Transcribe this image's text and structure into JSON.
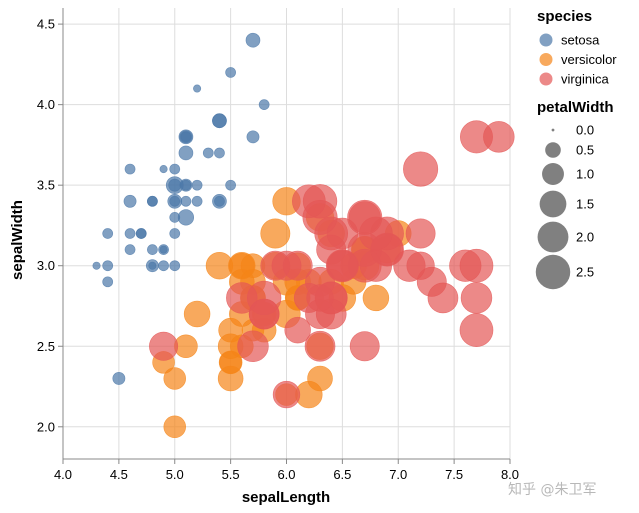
{
  "chart_data": {
    "type": "scatter",
    "xlabel": "sepalLength",
    "ylabel": "sepalWidth",
    "xlim": [
      4.0,
      8.0
    ],
    "ylim": [
      1.8,
      4.6
    ],
    "xticks": [
      "4.0",
      "4.5",
      "5.0",
      "5.5",
      "6.0",
      "6.5",
      "7.0",
      "7.5",
      "8.0"
    ],
    "yticks": [
      "2.0",
      "2.5",
      "3.0",
      "3.5",
      "4.0",
      "4.5"
    ],
    "xtick_values": [
      4.0,
      4.5,
      5.0,
      5.5,
      6.0,
      6.5,
      7.0,
      7.5,
      8.0
    ],
    "ytick_values": [
      2.0,
      2.5,
      3.0,
      3.5,
      4.0,
      4.5
    ],
    "grid": true,
    "legend_position": "right",
    "color_legend": {
      "title": "species",
      "entries": [
        {
          "label": "setosa",
          "color": "#4c78a8"
        },
        {
          "label": "versicolor",
          "color": "#f58518"
        },
        {
          "label": "virginica",
          "color": "#e45756"
        }
      ]
    },
    "size_legend": {
      "title": "petalWidth",
      "entries": [
        {
          "label": "0.0",
          "value": 0.0
        },
        {
          "label": "0.5",
          "value": 0.5
        },
        {
          "label": "1.0",
          "value": 1.0
        },
        {
          "label": "1.5",
          "value": 1.5
        },
        {
          "label": "2.0",
          "value": 2.0
        },
        {
          "label": "2.5",
          "value": 2.5
        }
      ]
    },
    "series": [
      {
        "name": "setosa",
        "color": "#4c78a8",
        "points": [
          [
            5.1,
            3.5,
            0.2
          ],
          [
            4.9,
            3.0,
            0.2
          ],
          [
            4.7,
            3.2,
            0.2
          ],
          [
            4.6,
            3.1,
            0.2
          ],
          [
            5.0,
            3.6,
            0.2
          ],
          [
            5.4,
            3.9,
            0.4
          ],
          [
            4.6,
            3.4,
            0.3
          ],
          [
            5.0,
            3.4,
            0.2
          ],
          [
            4.4,
            2.9,
            0.2
          ],
          [
            4.9,
            3.1,
            0.1
          ],
          [
            5.4,
            3.7,
            0.2
          ],
          [
            4.8,
            3.4,
            0.2
          ],
          [
            4.8,
            3.0,
            0.1
          ],
          [
            4.3,
            3.0,
            0.1
          ],
          [
            5.8,
            4.0,
            0.2
          ],
          [
            5.7,
            4.4,
            0.4
          ],
          [
            5.4,
            3.9,
            0.4
          ],
          [
            5.1,
            3.5,
            0.3
          ],
          [
            5.7,
            3.8,
            0.3
          ],
          [
            5.1,
            3.8,
            0.3
          ],
          [
            5.4,
            3.4,
            0.2
          ],
          [
            5.1,
            3.7,
            0.4
          ],
          [
            4.6,
            3.6,
            0.2
          ],
          [
            5.1,
            3.3,
            0.5
          ],
          [
            4.8,
            3.4,
            0.2
          ],
          [
            5.0,
            3.0,
            0.2
          ],
          [
            5.0,
            3.4,
            0.4
          ],
          [
            5.2,
            3.5,
            0.2
          ],
          [
            5.2,
            3.4,
            0.2
          ],
          [
            4.7,
            3.2,
            0.2
          ],
          [
            4.8,
            3.1,
            0.2
          ],
          [
            5.4,
            3.4,
            0.4
          ],
          [
            5.2,
            4.1,
            0.1
          ],
          [
            5.5,
            4.2,
            0.2
          ],
          [
            4.9,
            3.1,
            0.2
          ],
          [
            5.0,
            3.2,
            0.2
          ],
          [
            5.5,
            3.5,
            0.2
          ],
          [
            4.9,
            3.6,
            0.1
          ],
          [
            4.4,
            3.0,
            0.2
          ],
          [
            5.1,
            3.4,
            0.2
          ],
          [
            5.0,
            3.5,
            0.3
          ],
          [
            4.5,
            2.3,
            0.3
          ],
          [
            4.4,
            3.2,
            0.2
          ],
          [
            5.0,
            3.5,
            0.6
          ],
          [
            5.1,
            3.8,
            0.4
          ],
          [
            4.8,
            3.0,
            0.3
          ],
          [
            5.1,
            3.8,
            0.2
          ],
          [
            4.6,
            3.2,
            0.2
          ],
          [
            5.3,
            3.7,
            0.2
          ],
          [
            5.0,
            3.3,
            0.2
          ]
        ]
      },
      {
        "name": "versicolor",
        "color": "#f58518",
        "points": [
          [
            7.0,
            3.2,
            1.4
          ],
          [
            6.4,
            3.2,
            1.5
          ],
          [
            6.9,
            3.1,
            1.5
          ],
          [
            5.5,
            2.3,
            1.3
          ],
          [
            6.5,
            2.8,
            1.5
          ],
          [
            5.7,
            2.8,
            1.3
          ],
          [
            6.3,
            3.3,
            1.6
          ],
          [
            4.9,
            2.4,
            1.0
          ],
          [
            6.6,
            2.9,
            1.3
          ],
          [
            5.2,
            2.7,
            1.4
          ],
          [
            5.0,
            2.0,
            1.0
          ],
          [
            5.9,
            3.0,
            1.5
          ],
          [
            6.0,
            2.2,
            1.0
          ],
          [
            6.1,
            2.9,
            1.4
          ],
          [
            5.6,
            2.9,
            1.3
          ],
          [
            6.7,
            3.1,
            1.4
          ],
          [
            5.6,
            3.0,
            1.5
          ],
          [
            5.8,
            2.7,
            1.0
          ],
          [
            6.2,
            2.2,
            1.5
          ],
          [
            5.6,
            2.5,
            1.1
          ],
          [
            5.9,
            3.2,
            1.8
          ],
          [
            6.1,
            2.8,
            1.3
          ],
          [
            6.3,
            2.5,
            1.5
          ],
          [
            6.1,
            2.8,
            1.2
          ],
          [
            6.4,
            2.9,
            1.3
          ],
          [
            6.6,
            3.0,
            1.4
          ],
          [
            6.8,
            2.8,
            1.4
          ],
          [
            6.7,
            3.0,
            1.7
          ],
          [
            6.0,
            2.9,
            1.5
          ],
          [
            5.7,
            2.6,
            1.0
          ],
          [
            5.5,
            2.4,
            1.1
          ],
          [
            5.5,
            2.4,
            1.0
          ],
          [
            5.8,
            2.7,
            1.2
          ],
          [
            6.0,
            2.7,
            1.6
          ],
          [
            5.4,
            3.0,
            1.5
          ],
          [
            6.0,
            3.4,
            1.6
          ],
          [
            6.7,
            3.1,
            1.5
          ],
          [
            6.3,
            2.3,
            1.3
          ],
          [
            5.6,
            3.0,
            1.3
          ],
          [
            5.5,
            2.5,
            1.3
          ],
          [
            5.5,
            2.6,
            1.2
          ],
          [
            6.1,
            3.0,
            1.4
          ],
          [
            5.8,
            2.6,
            1.2
          ],
          [
            5.0,
            2.3,
            1.0
          ],
          [
            5.6,
            2.7,
            1.3
          ],
          [
            5.7,
            3.0,
            1.2
          ],
          [
            5.7,
            2.9,
            1.3
          ],
          [
            6.2,
            2.9,
            1.3
          ],
          [
            5.1,
            2.5,
            1.1
          ],
          [
            5.7,
            2.8,
            1.3
          ]
        ]
      },
      {
        "name": "virginica",
        "color": "#e45756",
        "points": [
          [
            6.3,
            3.3,
            2.5
          ],
          [
            5.8,
            2.7,
            1.9
          ],
          [
            7.1,
            3.0,
            2.1
          ],
          [
            6.3,
            2.9,
            1.8
          ],
          [
            6.5,
            3.0,
            2.2
          ],
          [
            7.6,
            3.0,
            2.1
          ],
          [
            4.9,
            2.5,
            1.7
          ],
          [
            7.3,
            2.9,
            1.8
          ],
          [
            6.7,
            2.5,
            1.8
          ],
          [
            7.2,
            3.6,
            2.5
          ],
          [
            6.5,
            3.2,
            2.0
          ],
          [
            6.4,
            2.7,
            1.9
          ],
          [
            6.8,
            3.0,
            2.1
          ],
          [
            5.7,
            2.5,
            2.0
          ],
          [
            5.8,
            2.8,
            2.4
          ],
          [
            6.4,
            3.2,
            2.3
          ],
          [
            6.5,
            3.0,
            1.8
          ],
          [
            7.7,
            3.8,
            2.2
          ],
          [
            7.7,
            2.6,
            2.3
          ],
          [
            6.0,
            2.2,
            1.5
          ],
          [
            6.9,
            3.2,
            2.3
          ],
          [
            5.6,
            2.8,
            2.0
          ],
          [
            7.7,
            2.8,
            2.0
          ],
          [
            6.3,
            2.7,
            1.8
          ],
          [
            6.7,
            3.3,
            2.1
          ],
          [
            7.2,
            3.2,
            1.8
          ],
          [
            6.2,
            2.8,
            1.8
          ],
          [
            6.1,
            3.0,
            1.8
          ],
          [
            6.4,
            2.8,
            2.1
          ],
          [
            7.2,
            3.0,
            1.6
          ],
          [
            7.4,
            2.8,
            1.9
          ],
          [
            7.9,
            3.8,
            2.0
          ],
          [
            6.4,
            2.8,
            2.2
          ],
          [
            6.3,
            2.8,
            1.5
          ],
          [
            6.1,
            2.6,
            1.4
          ],
          [
            7.7,
            3.0,
            2.3
          ],
          [
            6.3,
            3.4,
            2.4
          ],
          [
            6.4,
            3.1,
            1.8
          ],
          [
            6.0,
            3.0,
            1.8
          ],
          [
            6.9,
            3.1,
            2.1
          ],
          [
            6.7,
            3.1,
            2.4
          ],
          [
            6.9,
            3.1,
            2.3
          ],
          [
            5.8,
            2.7,
            1.9
          ],
          [
            6.8,
            3.2,
            2.3
          ],
          [
            6.7,
            3.3,
            2.5
          ],
          [
            6.7,
            3.0,
            2.3
          ],
          [
            6.3,
            2.5,
            1.9
          ],
          [
            6.5,
            3.0,
            2.0
          ],
          [
            6.2,
            3.4,
            2.3
          ],
          [
            5.9,
            3.0,
            1.8
          ]
        ]
      }
    ]
  },
  "watermark": "知乎 @朱卫军"
}
